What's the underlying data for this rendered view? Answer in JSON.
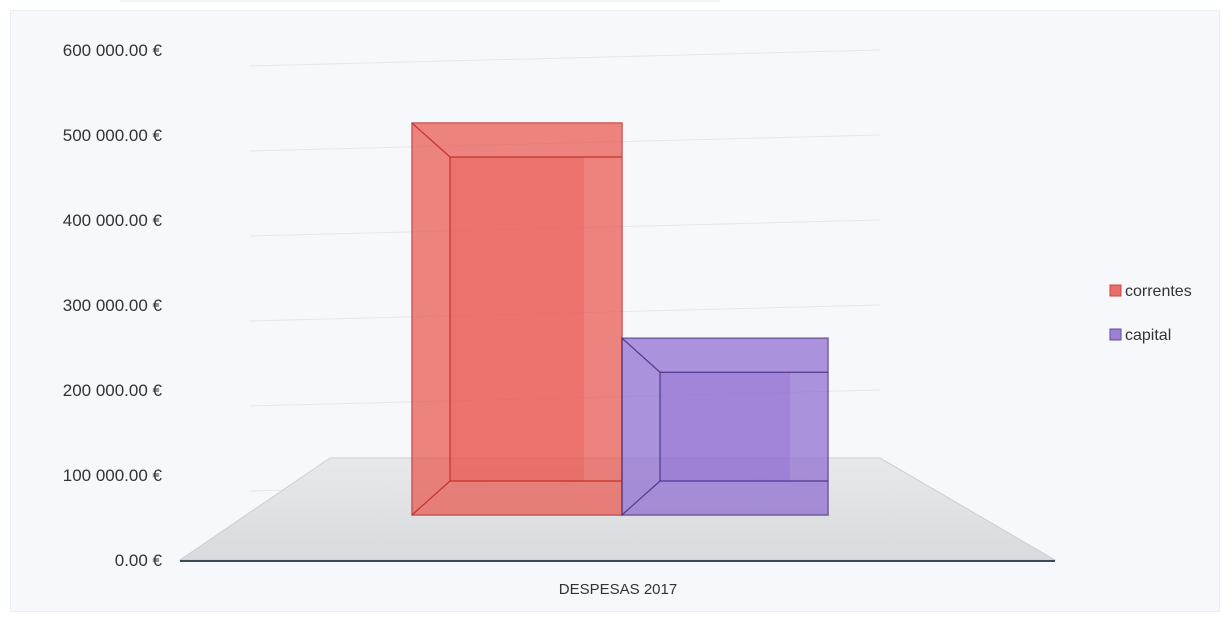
{
  "chart_data": {
    "type": "bar",
    "categories": [
      "DESPESAS 2017"
    ],
    "series": [
      {
        "name": "correntes",
        "values": [
          510000
        ],
        "color": "#e8574f"
      },
      {
        "name": "capital",
        "values": [
          230000
        ],
        "color": "#8e6bd0"
      }
    ],
    "ylim": [
      0,
      600000
    ],
    "yticks": [
      "0.00 €",
      "100 000.00 €",
      "200 000.00 €",
      "300 000.00 €",
      "400 000.00 €",
      "500 000.00 €",
      "600 000.00 €"
    ],
    "ytick_values": [
      0,
      100000,
      200000,
      300000,
      400000,
      500000,
      600000
    ],
    "legend": [
      "correntes",
      "capital"
    ],
    "legend_position": "right",
    "grid": true,
    "style": "3d-perspective"
  }
}
